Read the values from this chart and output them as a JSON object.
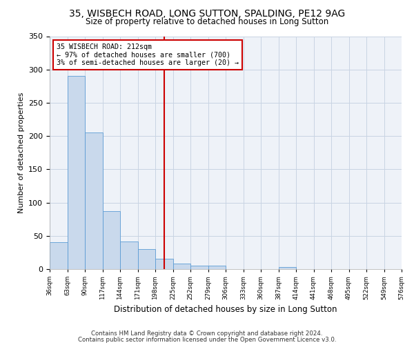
{
  "title": "35, WISBECH ROAD, LONG SUTTON, SPALDING, PE12 9AG",
  "subtitle": "Size of property relative to detached houses in Long Sutton",
  "xlabel": "Distribution of detached houses by size in Long Sutton",
  "ylabel": "Number of detached properties",
  "footnote1": "Contains HM Land Registry data © Crown copyright and database right 2024.",
  "footnote2": "Contains public sector information licensed under the Open Government Licence v3.0.",
  "bar_color": "#c9d9ec",
  "bar_edge_color": "#5a9bd5",
  "grid_color": "#c8d4e3",
  "bg_color": "#eef2f8",
  "annotation_box_color": "#cc0000",
  "vline_color": "#cc0000",
  "bin_edges": [
    36,
    63,
    90,
    117,
    144,
    171,
    198,
    225,
    252,
    279,
    306,
    333,
    360,
    387,
    414,
    441,
    468,
    495,
    522,
    549,
    576
  ],
  "bar_heights": [
    40,
    290,
    205,
    87,
    42,
    30,
    16,
    8,
    5,
    5,
    0,
    0,
    0,
    3,
    0,
    0,
    0,
    0,
    0,
    0
  ],
  "vline_x": 212,
  "annotation_line1": "35 WISBECH ROAD: 212sqm",
  "annotation_line2": "← 97% of detached houses are smaller (700)",
  "annotation_line3": "3% of semi-detached houses are larger (20) →",
  "ylim": [
    0,
    350
  ],
  "yticks": [
    0,
    50,
    100,
    150,
    200,
    250,
    300,
    350
  ]
}
